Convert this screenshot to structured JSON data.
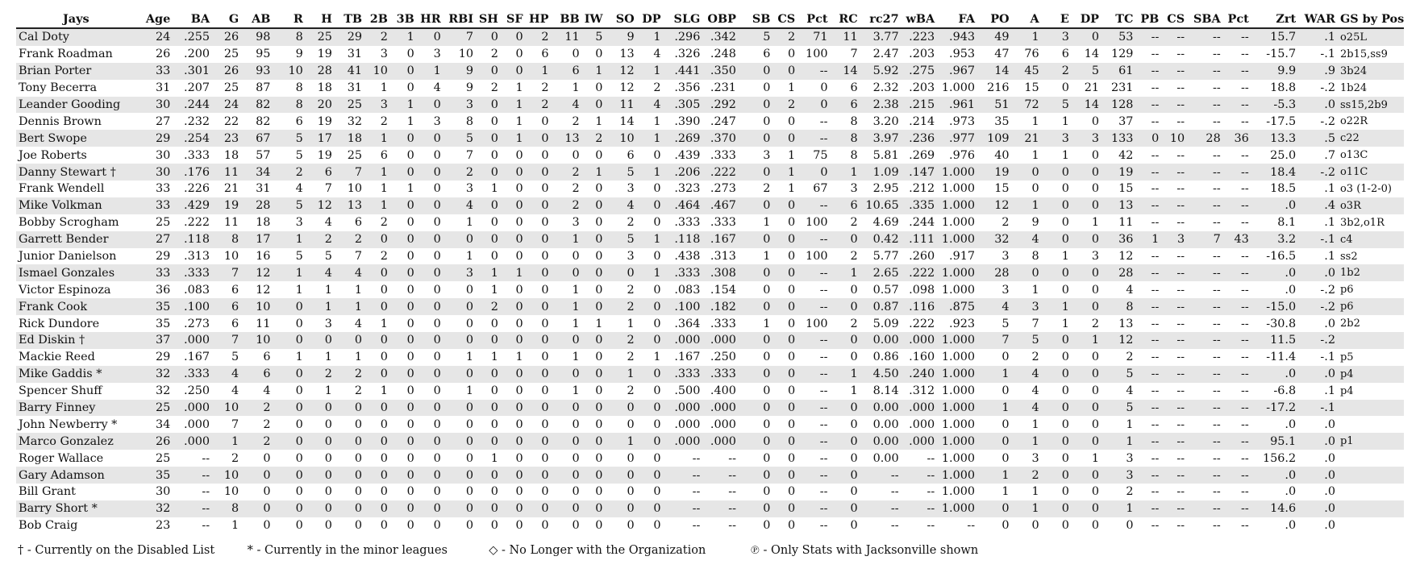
{
  "columns": [
    "Jays",
    "Age",
    "BA",
    "G",
    "AB",
    "R",
    "H",
    "TB",
    "2B",
    "3B",
    "HR",
    "RBI",
    "SH",
    "SF",
    "HP",
    "BB",
    "IW",
    "SO",
    "DP",
    "SLG",
    "OBP",
    "SB",
    "CS",
    "Pct",
    "RC",
    "rc27",
    "wBA",
    "FA",
    "PO",
    "A",
    "E",
    "DP",
    "TC",
    "PB",
    "CS",
    "SBA",
    "Pct",
    "Zrt",
    "WAR",
    "GS by Pos"
  ],
  "rows": [
    [
      "Cal Doty",
      "24",
      ".255",
      "26",
      "98",
      "8",
      "25",
      "29",
      "2",
      "1",
      "0",
      "7",
      "0",
      "0",
      "2",
      "11",
      "5",
      "9",
      "1",
      ".296",
      ".342",
      "5",
      "2",
      "71",
      "11",
      "3.77",
      ".223",
      ".943",
      "49",
      "1",
      "3",
      "0",
      "53",
      "--",
      "--",
      "--",
      "--",
      "15.7",
      ".1",
      "o25L"
    ],
    [
      "Frank Roadman",
      "26",
      ".200",
      "25",
      "95",
      "9",
      "19",
      "31",
      "3",
      "0",
      "3",
      "10",
      "2",
      "0",
      "6",
      "0",
      "0",
      "13",
      "4",
      ".326",
      ".248",
      "6",
      "0",
      "100",
      "7",
      "2.47",
      ".203",
      ".953",
      "47",
      "76",
      "6",
      "14",
      "129",
      "--",
      "--",
      "--",
      "--",
      "-15.7",
      "-.1",
      "2b15,ss9"
    ],
    [
      "Brian Porter",
      "33",
      ".301",
      "26",
      "93",
      "10",
      "28",
      "41",
      "10",
      "0",
      "1",
      "9",
      "0",
      "0",
      "1",
      "6",
      "1",
      "12",
      "1",
      ".441",
      ".350",
      "0",
      "0",
      "--",
      "14",
      "5.92",
      ".275",
      ".967",
      "14",
      "45",
      "2",
      "5",
      "61",
      "--",
      "--",
      "--",
      "--",
      "9.9",
      ".9",
      "3b24"
    ],
    [
      "Tony Becerra",
      "31",
      ".207",
      "25",
      "87",
      "8",
      "18",
      "31",
      "1",
      "0",
      "4",
      "9",
      "2",
      "1",
      "2",
      "1",
      "0",
      "12",
      "2",
      ".356",
      ".231",
      "0",
      "1",
      "0",
      "6",
      "2.32",
      ".203",
      "1.000",
      "216",
      "15",
      "0",
      "21",
      "231",
      "--",
      "--",
      "--",
      "--",
      "18.8",
      "-.2",
      "1b24"
    ],
    [
      "Leander Gooding",
      "30",
      ".244",
      "24",
      "82",
      "8",
      "20",
      "25",
      "3",
      "1",
      "0",
      "3",
      "0",
      "1",
      "2",
      "4",
      "0",
      "11",
      "4",
      ".305",
      ".292",
      "0",
      "2",
      "0",
      "6",
      "2.38",
      ".215",
      ".961",
      "51",
      "72",
      "5",
      "14",
      "128",
      "--",
      "--",
      "--",
      "--",
      "-5.3",
      ".0",
      "ss15,2b9"
    ],
    [
      "Dennis Brown",
      "27",
      ".232",
      "22",
      "82",
      "6",
      "19",
      "32",
      "2",
      "1",
      "3",
      "8",
      "0",
      "1",
      "0",
      "2",
      "1",
      "14",
      "1",
      ".390",
      ".247",
      "0",
      "0",
      "--",
      "8",
      "3.20",
      ".214",
      ".973",
      "35",
      "1",
      "1",
      "0",
      "37",
      "--",
      "--",
      "--",
      "--",
      "-17.5",
      "-.2",
      "o22R"
    ],
    [
      "Bert Swope",
      "29",
      ".254",
      "23",
      "67",
      "5",
      "17",
      "18",
      "1",
      "0",
      "0",
      "5",
      "0",
      "1",
      "0",
      "13",
      "2",
      "10",
      "1",
      ".269",
      ".370",
      "0",
      "0",
      "--",
      "8",
      "3.97",
      ".236",
      ".977",
      "109",
      "21",
      "3",
      "3",
      "133",
      "0",
      "10",
      "28",
      "36",
      "13.3",
      ".5",
      "c22"
    ],
    [
      "Joe Roberts",
      "30",
      ".333",
      "18",
      "57",
      "5",
      "19",
      "25",
      "6",
      "0",
      "0",
      "7",
      "0",
      "0",
      "0",
      "0",
      "0",
      "6",
      "0",
      ".439",
      ".333",
      "3",
      "1",
      "75",
      "8",
      "5.81",
      ".269",
      ".976",
      "40",
      "1",
      "1",
      "0",
      "42",
      "--",
      "--",
      "--",
      "--",
      "25.0",
      ".7",
      "o13C"
    ],
    [
      "Danny Stewart †",
      "30",
      ".176",
      "11",
      "34",
      "2",
      "6",
      "7",
      "1",
      "0",
      "0",
      "2",
      "0",
      "0",
      "0",
      "2",
      "1",
      "5",
      "1",
      ".206",
      ".222",
      "0",
      "1",
      "0",
      "1",
      "1.09",
      ".147",
      "1.000",
      "19",
      "0",
      "0",
      "0",
      "19",
      "--",
      "--",
      "--",
      "--",
      "18.4",
      "-.2",
      "o11C"
    ],
    [
      "Frank Wendell",
      "33",
      ".226",
      "21",
      "31",
      "4",
      "7",
      "10",
      "1",
      "1",
      "0",
      "3",
      "1",
      "0",
      "0",
      "2",
      "0",
      "3",
      "0",
      ".323",
      ".273",
      "2",
      "1",
      "67",
      "3",
      "2.95",
      ".212",
      "1.000",
      "15",
      "0",
      "0",
      "0",
      "15",
      "--",
      "--",
      "--",
      "--",
      "18.5",
      ".1",
      "o3 (1-2-0)"
    ],
    [
      "Mike Volkman",
      "33",
      ".429",
      "19",
      "28",
      "5",
      "12",
      "13",
      "1",
      "0",
      "0",
      "4",
      "0",
      "0",
      "0",
      "2",
      "0",
      "4",
      "0",
      ".464",
      ".467",
      "0",
      "0",
      "--",
      "6",
      "10.65",
      ".335",
      "1.000",
      "12",
      "1",
      "0",
      "0",
      "13",
      "--",
      "--",
      "--",
      "--",
      ".0",
      ".4",
      "o3R"
    ],
    [
      "Bobby Scrogham",
      "25",
      ".222",
      "11",
      "18",
      "3",
      "4",
      "6",
      "2",
      "0",
      "0",
      "1",
      "0",
      "0",
      "0",
      "3",
      "0",
      "2",
      "0",
      ".333",
      ".333",
      "1",
      "0",
      "100",
      "2",
      "4.69",
      ".244",
      "1.000",
      "2",
      "9",
      "0",
      "1",
      "11",
      "--",
      "--",
      "--",
      "--",
      "8.1",
      ".1",
      "3b2,o1R"
    ],
    [
      "Garrett Bender",
      "27",
      ".118",
      "8",
      "17",
      "1",
      "2",
      "2",
      "0",
      "0",
      "0",
      "0",
      "0",
      "0",
      "0",
      "1",
      "0",
      "5",
      "1",
      ".118",
      ".167",
      "0",
      "0",
      "--",
      "0",
      "0.42",
      ".111",
      "1.000",
      "32",
      "4",
      "0",
      "0",
      "36",
      "1",
      "3",
      "7",
      "43",
      "3.2",
      "-.1",
      "c4"
    ],
    [
      "Junior Danielson",
      "29",
      ".313",
      "10",
      "16",
      "5",
      "5",
      "7",
      "2",
      "0",
      "0",
      "1",
      "0",
      "0",
      "0",
      "0",
      "0",
      "3",
      "0",
      ".438",
      ".313",
      "1",
      "0",
      "100",
      "2",
      "5.77",
      ".260",
      ".917",
      "3",
      "8",
      "1",
      "3",
      "12",
      "--",
      "--",
      "--",
      "--",
      "-16.5",
      ".1",
      "ss2"
    ],
    [
      "Ismael Gonzales",
      "33",
      ".333",
      "7",
      "12",
      "1",
      "4",
      "4",
      "0",
      "0",
      "0",
      "3",
      "1",
      "1",
      "0",
      "0",
      "0",
      "0",
      "1",
      ".333",
      ".308",
      "0",
      "0",
      "--",
      "1",
      "2.65",
      ".222",
      "1.000",
      "28",
      "0",
      "0",
      "0",
      "28",
      "--",
      "--",
      "--",
      "--",
      ".0",
      ".0",
      "1b2"
    ],
    [
      "Victor Espinoza",
      "36",
      ".083",
      "6",
      "12",
      "1",
      "1",
      "1",
      "0",
      "0",
      "0",
      "0",
      "1",
      "0",
      "0",
      "1",
      "0",
      "2",
      "0",
      ".083",
      ".154",
      "0",
      "0",
      "--",
      "0",
      "0.57",
      ".098",
      "1.000",
      "3",
      "1",
      "0",
      "0",
      "4",
      "--",
      "--",
      "--",
      "--",
      ".0",
      "-.2",
      "p6"
    ],
    [
      "Frank Cook",
      "35",
      ".100",
      "6",
      "10",
      "0",
      "1",
      "1",
      "0",
      "0",
      "0",
      "0",
      "2",
      "0",
      "0",
      "1",
      "0",
      "2",
      "0",
      ".100",
      ".182",
      "0",
      "0",
      "--",
      "0",
      "0.87",
      ".116",
      ".875",
      "4",
      "3",
      "1",
      "0",
      "8",
      "--",
      "--",
      "--",
      "--",
      "-15.0",
      "-.2",
      "p6"
    ],
    [
      "Rick Dundore",
      "35",
      ".273",
      "6",
      "11",
      "0",
      "3",
      "4",
      "1",
      "0",
      "0",
      "0",
      "0",
      "0",
      "0",
      "1",
      "1",
      "1",
      "0",
      ".364",
      ".333",
      "1",
      "0",
      "100",
      "2",
      "5.09",
      ".222",
      ".923",
      "5",
      "7",
      "1",
      "2",
      "13",
      "--",
      "--",
      "--",
      "--",
      "-30.8",
      ".0",
      "2b2"
    ],
    [
      "Ed Diskin †",
      "37",
      ".000",
      "7",
      "10",
      "0",
      "0",
      "0",
      "0",
      "0",
      "0",
      "0",
      "0",
      "0",
      "0",
      "0",
      "0",
      "2",
      "0",
      ".000",
      ".000",
      "0",
      "0",
      "--",
      "0",
      "0.00",
      ".000",
      "1.000",
      "7",
      "5",
      "0",
      "1",
      "12",
      "--",
      "--",
      "--",
      "--",
      "11.5",
      "-.2",
      ""
    ],
    [
      "Mackie Reed",
      "29",
      ".167",
      "5",
      "6",
      "1",
      "1",
      "1",
      "0",
      "0",
      "0",
      "1",
      "1",
      "1",
      "0",
      "1",
      "0",
      "2",
      "1",
      ".167",
      ".250",
      "0",
      "0",
      "--",
      "0",
      "0.86",
      ".160",
      "1.000",
      "0",
      "2",
      "0",
      "0",
      "2",
      "--",
      "--",
      "--",
      "--",
      "-11.4",
      "-.1",
      "p5"
    ],
    [
      "Mike Gaddis *",
      "32",
      ".333",
      "4",
      "6",
      "0",
      "2",
      "2",
      "0",
      "0",
      "0",
      "0",
      "0",
      "0",
      "0",
      "0",
      "0",
      "1",
      "0",
      ".333",
      ".333",
      "0",
      "0",
      "--",
      "1",
      "4.50",
      ".240",
      "1.000",
      "1",
      "4",
      "0",
      "0",
      "5",
      "--",
      "--",
      "--",
      "--",
      ".0",
      ".0",
      "p4"
    ],
    [
      "Spencer Shuff",
      "32",
      ".250",
      "4",
      "4",
      "0",
      "1",
      "2",
      "1",
      "0",
      "0",
      "1",
      "0",
      "0",
      "0",
      "1",
      "0",
      "2",
      "0",
      ".500",
      ".400",
      "0",
      "0",
      "--",
      "1",
      "8.14",
      ".312",
      "1.000",
      "0",
      "4",
      "0",
      "0",
      "4",
      "--",
      "--",
      "--",
      "--",
      "-6.8",
      ".1",
      "p4"
    ],
    [
      "Barry Finney",
      "25",
      ".000",
      "10",
      "2",
      "0",
      "0",
      "0",
      "0",
      "0",
      "0",
      "0",
      "0",
      "0",
      "0",
      "0",
      "0",
      "0",
      "0",
      ".000",
      ".000",
      "0",
      "0",
      "--",
      "0",
      "0.00",
      ".000",
      "1.000",
      "1",
      "4",
      "0",
      "0",
      "5",
      "--",
      "--",
      "--",
      "--",
      "-17.2",
      "-.1",
      ""
    ],
    [
      "John Newberry *",
      "34",
      ".000",
      "7",
      "2",
      "0",
      "0",
      "0",
      "0",
      "0",
      "0",
      "0",
      "0",
      "0",
      "0",
      "0",
      "0",
      "0",
      "0",
      ".000",
      ".000",
      "0",
      "0",
      "--",
      "0",
      "0.00",
      ".000",
      "1.000",
      "0",
      "1",
      "0",
      "0",
      "1",
      "--",
      "--",
      "--",
      "--",
      ".0",
      ".0",
      ""
    ],
    [
      "Marco Gonzalez",
      "26",
      ".000",
      "1",
      "2",
      "0",
      "0",
      "0",
      "0",
      "0",
      "0",
      "0",
      "0",
      "0",
      "0",
      "0",
      "0",
      "1",
      "0",
      ".000",
      ".000",
      "0",
      "0",
      "--",
      "0",
      "0.00",
      ".000",
      "1.000",
      "0",
      "1",
      "0",
      "0",
      "1",
      "--",
      "--",
      "--",
      "--",
      "95.1",
      ".0",
      "p1"
    ],
    [
      "Roger Wallace",
      "25",
      "--",
      "2",
      "0",
      "0",
      "0",
      "0",
      "0",
      "0",
      "0",
      "0",
      "1",
      "0",
      "0",
      "0",
      "0",
      "0",
      "0",
      "--",
      "--",
      "0",
      "0",
      "--",
      "0",
      "0.00",
      "--",
      "1.000",
      "0",
      "3",
      "0",
      "1",
      "3",
      "--",
      "--",
      "--",
      "--",
      "156.2",
      ".0",
      ""
    ],
    [
      "Gary Adamson",
      "35",
      "--",
      "10",
      "0",
      "0",
      "0",
      "0",
      "0",
      "0",
      "0",
      "0",
      "0",
      "0",
      "0",
      "0",
      "0",
      "0",
      "0",
      "--",
      "--",
      "0",
      "0",
      "--",
      "0",
      "--",
      "--",
      "1.000",
      "1",
      "2",
      "0",
      "0",
      "3",
      "--",
      "--",
      "--",
      "--",
      ".0",
      ".0",
      ""
    ],
    [
      "Bill Grant",
      "30",
      "--",
      "10",
      "0",
      "0",
      "0",
      "0",
      "0",
      "0",
      "0",
      "0",
      "0",
      "0",
      "0",
      "0",
      "0",
      "0",
      "0",
      "--",
      "--",
      "0",
      "0",
      "--",
      "0",
      "--",
      "--",
      "1.000",
      "1",
      "1",
      "0",
      "0",
      "2",
      "--",
      "--",
      "--",
      "--",
      ".0",
      ".0",
      ""
    ],
    [
      "Barry Short *",
      "32",
      "--",
      "8",
      "0",
      "0",
      "0",
      "0",
      "0",
      "0",
      "0",
      "0",
      "0",
      "0",
      "0",
      "0",
      "0",
      "0",
      "0",
      "--",
      "--",
      "0",
      "0",
      "--",
      "0",
      "--",
      "--",
      "1.000",
      "0",
      "1",
      "0",
      "0",
      "1",
      "--",
      "--",
      "--",
      "--",
      "14.6",
      ".0",
      ""
    ],
    [
      "Bob Craig",
      "23",
      "--",
      "1",
      "0",
      "0",
      "0",
      "0",
      "0",
      "0",
      "0",
      "0",
      "0",
      "0",
      "0",
      "0",
      "0",
      "0",
      "0",
      "--",
      "--",
      "0",
      "0",
      "--",
      "0",
      "--",
      "--",
      "--",
      "0",
      "0",
      "0",
      "0",
      "0",
      "--",
      "--",
      "--",
      "--",
      ".0",
      ".0",
      ""
    ]
  ],
  "legend": {
    "disabled": "† - Currently on the Disabled List",
    "minors": "* - Currently in the minor leagues",
    "no_longer": "◇ - No Longer with the Organization",
    "only_stats": "℗ - Only Stats with Jacksonville shown"
  }
}
